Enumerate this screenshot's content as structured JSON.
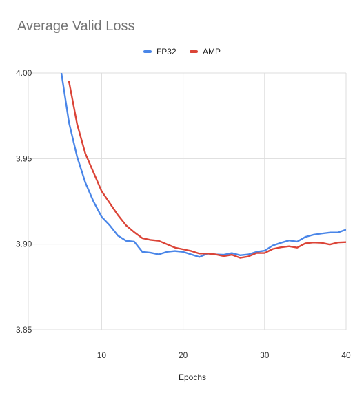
{
  "chart_data": {
    "type": "line",
    "title": "Average Valid Loss",
    "xlabel": "Epochs",
    "ylabel": "",
    "xlim": [
      1,
      40
    ],
    "ylim": [
      3.85,
      4.0
    ],
    "x_ticks": [
      10,
      20,
      30,
      40
    ],
    "y_ticks": [
      3.85,
      3.9,
      3.95,
      4.0
    ],
    "y_tick_labels": [
      "3.85",
      "3.90",
      "3.95",
      "4.00"
    ],
    "grid": true,
    "legend_position": "top-center",
    "x": [
      5,
      6,
      7,
      8,
      9,
      10,
      11,
      12,
      13,
      14,
      15,
      16,
      17,
      18,
      19,
      20,
      21,
      22,
      23,
      24,
      25,
      26,
      27,
      28,
      29,
      30,
      31,
      32,
      33,
      34,
      35,
      36,
      37,
      38,
      39,
      40
    ],
    "series": [
      {
        "name": "FP32",
        "color": "#4a86e8",
        "x": [
          5,
          6,
          7,
          8,
          9,
          10,
          11,
          12,
          13,
          14,
          15,
          16,
          17,
          18,
          19,
          20,
          21,
          22,
          23,
          24,
          25,
          26,
          27,
          28,
          29,
          30,
          31,
          32,
          33,
          34,
          35,
          36,
          37,
          38,
          39,
          40
        ],
        "values": [
          4.002,
          3.971,
          3.951,
          3.936,
          3.925,
          3.916,
          3.911,
          3.905,
          3.902,
          3.9015,
          3.8955,
          3.895,
          3.894,
          3.8955,
          3.896,
          3.8955,
          3.894,
          3.8925,
          3.8945,
          3.894,
          3.8938,
          3.8948,
          3.8935,
          3.894,
          3.8955,
          3.8962,
          3.8992,
          3.9008,
          3.9022,
          3.9015,
          3.9042,
          3.9055,
          3.9062,
          3.9068,
          3.9068,
          3.9085
        ]
      },
      {
        "name": "AMP",
        "color": "#db4437",
        "x": [
          6,
          7,
          8,
          9,
          10,
          11,
          12,
          13,
          14,
          15,
          16,
          17,
          18,
          19,
          20,
          21,
          22,
          23,
          24,
          25,
          26,
          27,
          28,
          29,
          30,
          31,
          32,
          33,
          34,
          35,
          36,
          37,
          38,
          39,
          40
        ],
        "values": [
          3.995,
          3.97,
          3.953,
          3.942,
          3.931,
          3.924,
          3.917,
          3.911,
          3.907,
          3.9035,
          3.9025,
          3.902,
          3.9,
          3.898,
          3.897,
          3.896,
          3.8945,
          3.8945,
          3.894,
          3.893,
          3.8938,
          3.892,
          3.8928,
          3.8948,
          3.8948,
          3.8972,
          3.8982,
          3.8988,
          3.898,
          3.9005,
          3.901,
          3.9008,
          3.8998,
          3.901,
          3.9012
        ]
      }
    ]
  }
}
